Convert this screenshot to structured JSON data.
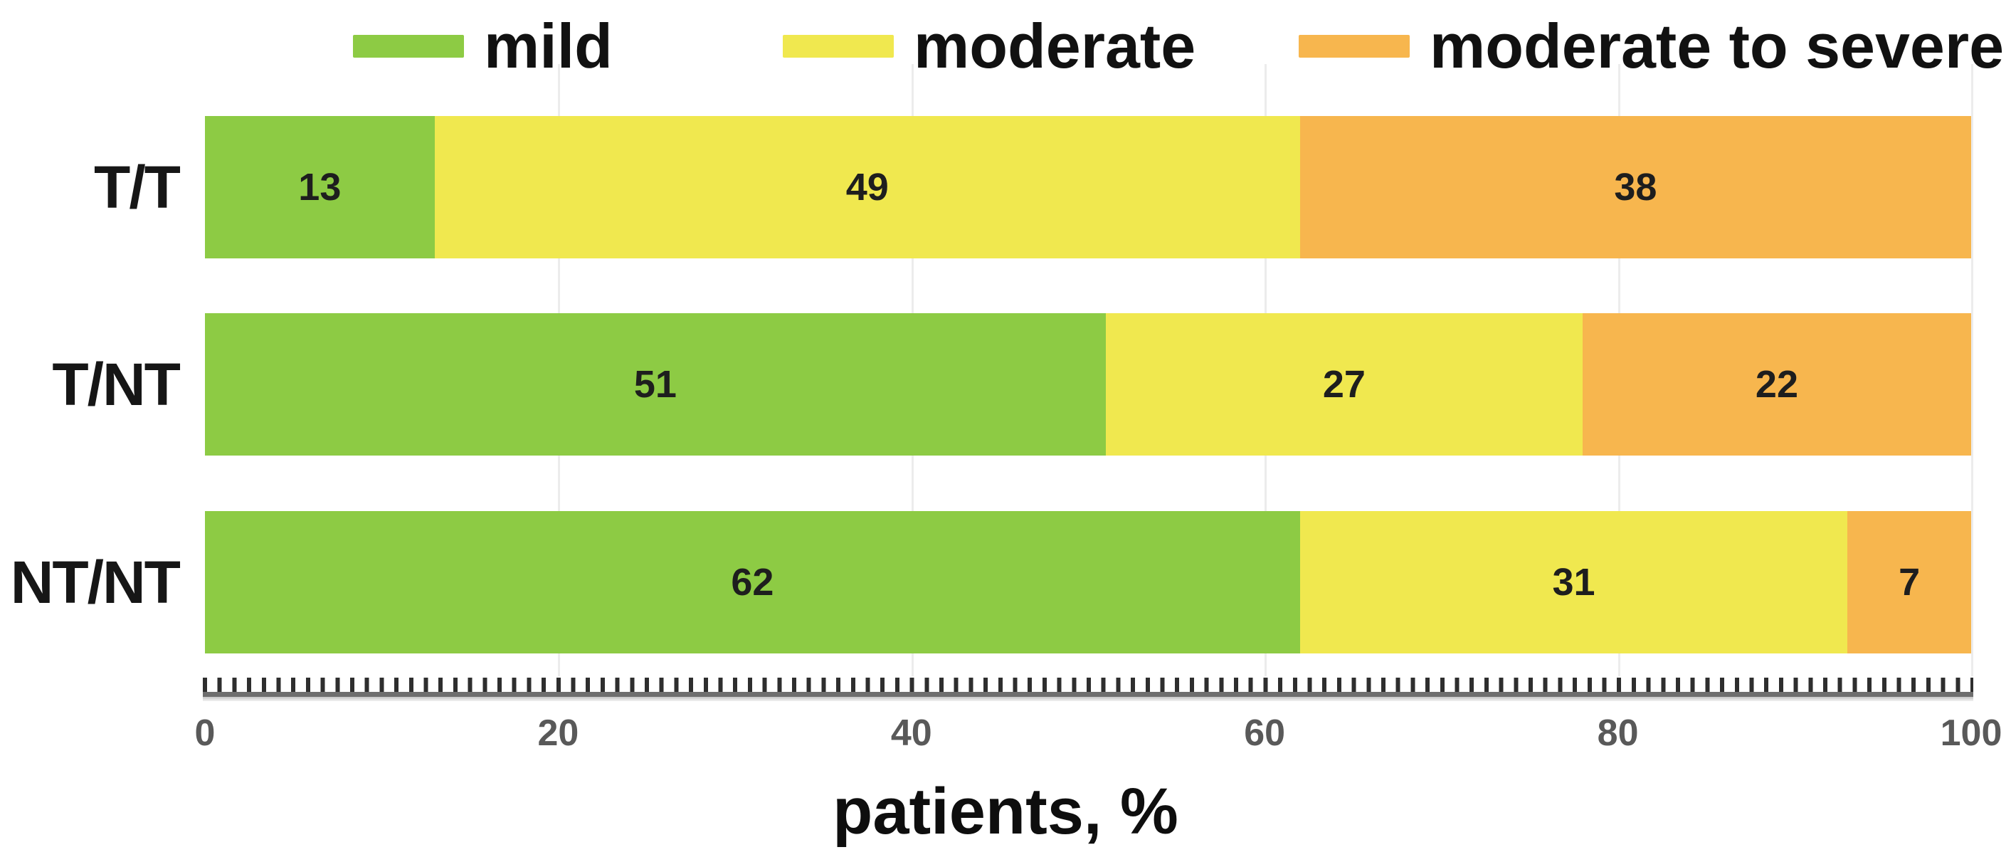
{
  "chart_data": {
    "type": "bar",
    "orientation": "horizontal",
    "stacked": true,
    "title": "",
    "xlabel": "patients, %",
    "ylabel": "",
    "xlim": [
      0,
      100
    ],
    "xticks": [
      0,
      20,
      40,
      60,
      80,
      100
    ],
    "grid": "vertical-light",
    "legend_position": "top",
    "categories": [
      "T/T",
      "T/NT",
      "NT/NT"
    ],
    "series": [
      {
        "name": "mild",
        "color": "#8dcb44",
        "values": [
          13,
          51,
          62
        ]
      },
      {
        "name": "moderate",
        "color": "#f0e84f",
        "values": [
          49,
          27,
          31
        ]
      },
      {
        "name": "moderate to severe",
        "color": "#f7b64e",
        "values": [
          38,
          22,
          7
        ]
      }
    ]
  },
  "colors": {
    "grid": "#ececec",
    "tick_label": "#595959",
    "value_label": "#1e1e1e"
  }
}
